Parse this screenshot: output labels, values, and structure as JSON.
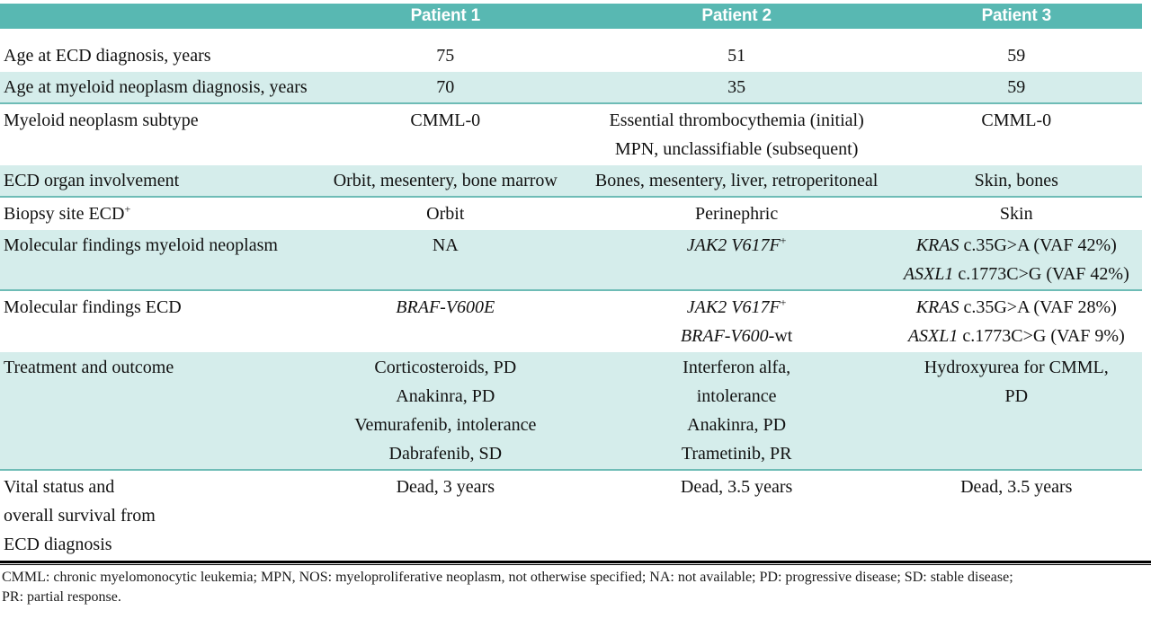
{
  "colors": {
    "header_bg": "#58b8b2",
    "shaded_row_bg": "#d5edeb",
    "shaded_row_border": "#6ebcb6"
  },
  "table": {
    "header": [
      "",
      "Patient 1",
      "Patient 2",
      "Patient 3"
    ],
    "rows": [
      {
        "shaded": false,
        "label": [
          "Age at ECD diagnosis, years"
        ],
        "cells": [
          [
            "75"
          ],
          [
            "51"
          ],
          [
            "59"
          ]
        ]
      },
      {
        "shaded": true,
        "label": [
          "Age at myeloid neoplasm diagnosis, years"
        ],
        "cells": [
          [
            "70"
          ],
          [
            "35"
          ],
          [
            "59"
          ]
        ]
      },
      {
        "shaded": false,
        "label": [
          "Myeloid neoplasm subtype"
        ],
        "cells": [
          [
            "CMML-0"
          ],
          [
            "Essential thrombocythemia (initial)",
            "MPN, unclassifiable (subsequent)"
          ],
          [
            "CMML-0"
          ]
        ]
      },
      {
        "shaded": true,
        "label": [
          "ECD organ involvement"
        ],
        "cells": [
          [
            "Orbit, mesentery, bone marrow"
          ],
          [
            "Bones, mesentery, liver, retroperitoneal"
          ],
          [
            "Skin, bones"
          ]
        ]
      },
      {
        "shaded": false,
        "label": [
          [
            {
              "t": "Biopsy site ECD"
            },
            {
              "t": "+",
              "sup": true
            }
          ]
        ],
        "cells": [
          [
            "Orbit"
          ],
          [
            "Perinephric"
          ],
          [
            "Skin"
          ]
        ]
      },
      {
        "shaded": true,
        "label": [
          "Molecular findings myeloid neoplasm"
        ],
        "cells": [
          [
            "NA"
          ],
          [
            [
              {
                "t": "JAK2 V617F",
                "i": true
              },
              {
                "t": "+",
                "sup": true
              }
            ]
          ],
          [
            [
              {
                "t": "KRAS",
                "i": true
              },
              {
                "t": " c.35G>A (VAF 42%)"
              }
            ],
            [
              {
                "t": "ASXL1",
                "i": true
              },
              {
                "t": " c.1773C>G (VAF 42%)"
              }
            ]
          ]
        ]
      },
      {
        "shaded": false,
        "label": [
          "Molecular findings ECD"
        ],
        "cells": [
          [
            [
              {
                "t": "BRAF-V600E",
                "i": true
              }
            ]
          ],
          [
            [
              {
                "t": "JAK2 V617F",
                "i": true
              },
              {
                "t": "+",
                "sup": true
              }
            ],
            [
              {
                "t": "BRAF-V600",
                "i": true
              },
              {
                "t": "-wt"
              }
            ]
          ],
          [
            [
              {
                "t": "KRAS",
                "i": true
              },
              {
                "t": " c.35G>A (VAF 28%)"
              }
            ],
            [
              {
                "t": "ASXL1",
                "i": true
              },
              {
                "t": " c.1773C>G (VAF 9%)"
              }
            ]
          ]
        ]
      },
      {
        "shaded": true,
        "label": [
          "Treatment and outcome"
        ],
        "cells": [
          [
            "Corticosteroids, PD",
            "Anakinra, PD",
            "Vemurafenib, intolerance",
            "Dabrafenib, SD"
          ],
          [
            "Interferon alfa,",
            "intolerance",
            "Anakinra, PD",
            "Trametinib, PR"
          ],
          [
            "Hydroxyurea for CMML,",
            "PD"
          ]
        ]
      },
      {
        "shaded": false,
        "label": [
          "Vital status and",
          "overall survival from",
          "ECD diagnosis"
        ],
        "cells": [
          [
            "Dead, 3 years"
          ],
          [
            "Dead, 3.5 years"
          ],
          [
            "Dead, 3.5 years"
          ]
        ]
      }
    ]
  },
  "footnote": {
    "lines": [
      "CMML: chronic myelomonocytic leukemia; MPN, NOS: myeloproliferative neoplasm, not otherwise specified; NA: not available; PD: progressive disease; SD: stable disease;",
      "PR: partial response."
    ]
  }
}
